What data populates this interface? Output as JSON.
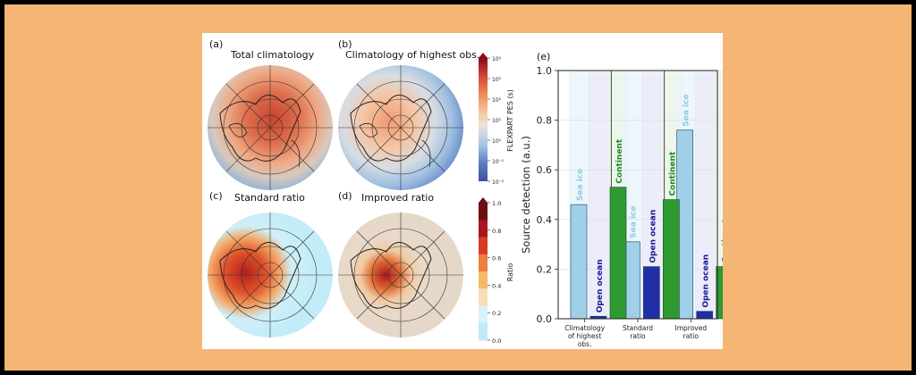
{
  "panels": {
    "a": {
      "letter": "(a)",
      "title": "Total climatology"
    },
    "b": {
      "letter": "(b)",
      "title": "Climatology of highest obs."
    },
    "c": {
      "letter": "(c)",
      "title": "Standard ratio"
    },
    "d": {
      "letter": "(d)",
      "title": "Improved ratio"
    },
    "e": {
      "letter": "(e)"
    }
  },
  "colorbars": {
    "pes": {
      "label": "FLEXPART PES (s)",
      "ticks": [
        "10⁴",
        "10³",
        "10²",
        "10¹",
        "10⁰",
        "10⁻¹",
        "10⁻²"
      ],
      "colors": [
        "#8B0A1A",
        "#D4483A",
        "#F08C5A",
        "#F5CBA0",
        "#E8E3DE",
        "#A9C6E6",
        "#5A7FC4",
        "#3E4FA0"
      ]
    },
    "ratio": {
      "label": "Ratio",
      "ticks": [
        "1.0",
        "0.8",
        "0.6",
        "0.4",
        "0.2",
        "0.0"
      ],
      "colors": [
        "#6B0E12",
        "#A8171C",
        "#D93A24",
        "#EE7E3C",
        "#F5B86B",
        "#F7DDB8",
        "#D9F1FA",
        "#BFEAF8"
      ]
    }
  },
  "chart_data": {
    "type": "bar",
    "ylabel": "Source detection (a.u.)",
    "ylim": [
      0,
      1.0
    ],
    "yticks": [
      "0.0",
      "0.2",
      "0.4",
      "0.6",
      "0.8",
      "1.0"
    ],
    "grid": true,
    "categories": [
      "Climatology of highest obs.",
      "Standard ratio",
      "Improved ratio"
    ],
    "category_lines": [
      [
        "Climatology",
        "of highest",
        "obs."
      ],
      [
        "Standard",
        "ratio"
      ],
      [
        "Improved",
        "ratio"
      ]
    ],
    "series": [
      {
        "name": "Sea ice",
        "color": "#9FD0E8",
        "text_color": "#8FCBE6",
        "values": [
          0.46,
          0.31,
          0.76
        ]
      },
      {
        "name": "Open ocean",
        "color": "#1F2FA6",
        "text_color": "#1A1A9A",
        "values": [
          0.01,
          0.21,
          0.03
        ]
      },
      {
        "name": "Continent",
        "color": "#2F9A2F",
        "text_color": "#1E8C1E",
        "values": [
          0.53,
          0.48,
          0.21
        ]
      }
    ],
    "background_bands": [
      "#E9F4FA",
      "#E7E9F7",
      "#E8F4E6"
    ]
  }
}
